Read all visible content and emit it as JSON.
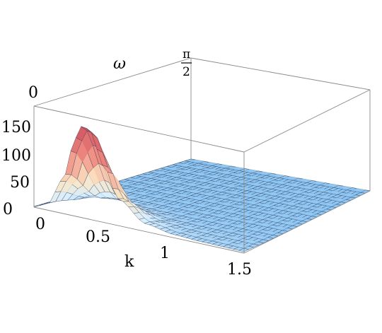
{
  "chart_data": {
    "type": "surface",
    "axes": {
      "k": {
        "label": "k",
        "range": [
          0,
          1.5
        ],
        "tick_labels": [
          "0",
          "0.5",
          "1",
          "1.5"
        ]
      },
      "omega": {
        "label": "ω",
        "range": [
          0,
          1.5708
        ],
        "tick_labels": [
          "0",
          "π",
          "2"
        ]
      },
      "z": {
        "label": "",
        "range": [
          0,
          175
        ],
        "tick_labels": [
          "0",
          "50",
          "100",
          "150"
        ]
      }
    },
    "peak": {
      "k": 0.35,
      "omega": 0.0,
      "value": 160
    },
    "surface_samples": {
      "k": [
        0,
        0.1,
        0.2,
        0.3,
        0.35,
        0.4,
        0.5,
        0.6,
        0.8,
        1.0,
        1.2,
        1.5
      ],
      "values_at_omega_0": [
        0,
        10,
        55,
        135,
        160,
        150,
        95,
        45,
        12,
        4,
        2,
        1
      ]
    },
    "colormap": [
      "#cc4f5e",
      "#f08a80",
      "#fbe6c4",
      "#d8efff",
      "#8ec6f4"
    ],
    "box": true,
    "grid": false
  }
}
